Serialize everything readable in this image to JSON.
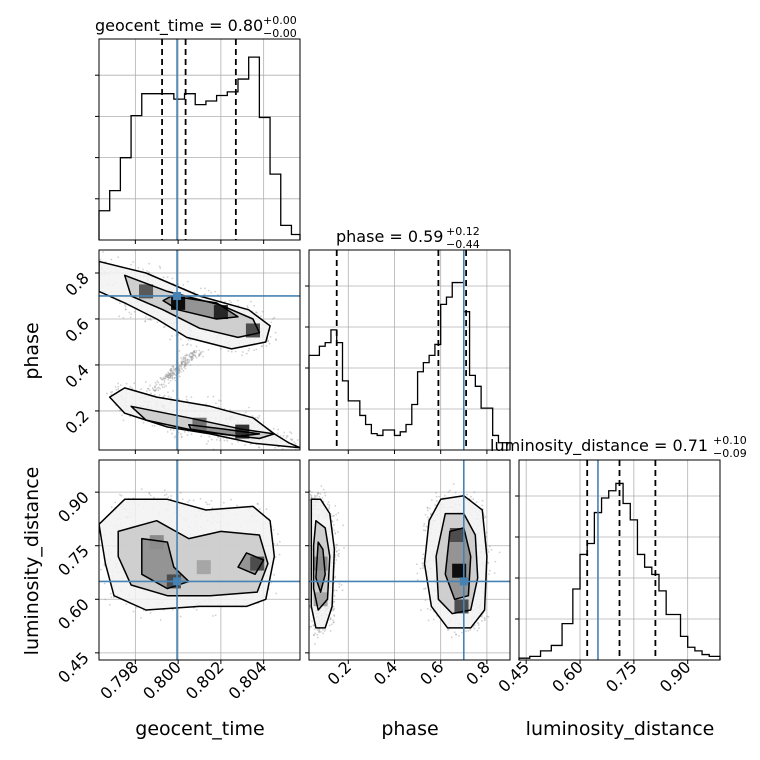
{
  "chart_data": {
    "type": "corner",
    "parameters": [
      "geocent_time",
      "phase",
      "luminosity_distance"
    ],
    "titles": [
      {
        "param": "geocent_time",
        "text": "geocent_time = 0.80",
        "sup": "+0.00",
        "sub": "−0.00"
      },
      {
        "param": "phase",
        "text": "phase = 0.59",
        "sup": "+0.12",
        "sub": "−0.44"
      },
      {
        "param": "luminosity_distance",
        "text": "luminosity_distance = 0.71",
        "sup": "+0.10",
        "sub": "−0.09"
      }
    ],
    "axis_labels": {
      "x": [
        "geocent_time",
        "phase",
        "luminosity_distance"
      ],
      "y": [
        "phase",
        "luminosity_distance"
      ]
    },
    "ranges": {
      "geocent_time": [
        0.7963,
        0.8057
      ],
      "phase": [
        0.03,
        0.9
      ],
      "luminosity_distance": [
        0.43,
        0.99
      ]
    },
    "ticks": {
      "geocent_time": [
        "0.798",
        "0.800",
        "0.802",
        "0.804"
      ],
      "phase_x": [
        "0.2",
        "0.4",
        "0.6",
        "0.8"
      ],
      "phase_y": [
        "0.2",
        "0.4",
        "0.6",
        "0.8"
      ],
      "luminosity_distance": [
        "0.45",
        "0.60",
        "0.75",
        "0.90"
      ]
    },
    "truths": {
      "geocent_time": 0.79995,
      "phase": 0.7,
      "luminosity_distance": 0.65
    },
    "quantiles": {
      "geocent_time": [
        0.79925,
        0.80035,
        0.8027
      ],
      "phase": [
        0.15,
        0.59,
        0.71
      ],
      "luminosity_distance": [
        0.62,
        0.71,
        0.81
      ]
    },
    "histograms": {
      "geocent_time": {
        "edges": [
          0.7963,
          0.7968,
          0.7973,
          0.7978,
          0.7983,
          0.7988,
          0.7993,
          0.7998,
          0.8003,
          0.8008,
          0.8013,
          0.8018,
          0.8023,
          0.8028,
          0.8033,
          0.8038,
          0.8043,
          0.8048,
          0.8053,
          0.8057
        ],
        "values": [
          0.16,
          0.27,
          0.45,
          0.68,
          0.8,
          0.8,
          0.8,
          0.77,
          0.8,
          0.74,
          0.76,
          0.79,
          0.81,
          0.88,
          1.0,
          0.67,
          0.36,
          0.08,
          0.03
        ]
      },
      "phase": {
        "edges": [
          0.03,
          0.075,
          0.1,
          0.125,
          0.15,
          0.175,
          0.2,
          0.225,
          0.25,
          0.275,
          0.3,
          0.325,
          0.35,
          0.4,
          0.425,
          0.45,
          0.475,
          0.5,
          0.525,
          0.55,
          0.575,
          0.6,
          0.625,
          0.65,
          0.675,
          0.7,
          0.725,
          0.75,
          0.775,
          0.8,
          0.825,
          0.85,
          0.9
        ],
        "values": [
          0.52,
          0.57,
          0.59,
          0.66,
          0.59,
          0.38,
          0.27,
          0.27,
          0.19,
          0.14,
          0.09,
          0.08,
          0.11,
          0.08,
          0.1,
          0.14,
          0.25,
          0.43,
          0.48,
          0.52,
          0.58,
          0.8,
          0.84,
          0.92,
          0.92,
          0.76,
          0.41,
          0.35,
          0.23,
          0.23,
          0.08,
          0.04
        ]
      },
      "luminosity_distance": {
        "edges": [
          0.43,
          0.46,
          0.49,
          0.52,
          0.55,
          0.58,
          0.6,
          0.62,
          0.64,
          0.66,
          0.68,
          0.7,
          0.72,
          0.74,
          0.76,
          0.78,
          0.8,
          0.82,
          0.84,
          0.86,
          0.88,
          0.9,
          0.92,
          0.94,
          0.96,
          0.99
        ],
        "values": [
          0.01,
          0.02,
          0.05,
          0.08,
          0.2,
          0.39,
          0.58,
          0.64,
          0.81,
          0.89,
          0.93,
          0.97,
          0.86,
          0.77,
          0.58,
          0.51,
          0.47,
          0.38,
          0.25,
          0.25,
          0.13,
          0.07,
          0.05,
          0.03,
          0.02
        ]
      }
    },
    "contours_2d": {
      "geocent_time_vs_phase": [
        {
          "level": "outer",
          "points": [
            [
              0.7963,
              0.85
            ],
            [
              0.7985,
              0.8
            ],
            [
              0.801,
              0.7
            ],
            [
              0.8033,
              0.64
            ],
            [
              0.8043,
              0.57
            ],
            [
              0.8041,
              0.5
            ],
            [
              0.8025,
              0.47
            ],
            [
              0.8004,
              0.52
            ],
            [
              0.799,
              0.6
            ],
            [
              0.7975,
              0.67
            ],
            [
              0.7963,
              0.72
            ]
          ]
        },
        {
          "level": "outer",
          "points": [
            [
              0.7975,
              0.3
            ],
            [
              0.799,
              0.26
            ],
            [
              0.8015,
              0.22
            ],
            [
              0.8035,
              0.17
            ],
            [
              0.8045,
              0.1
            ],
            [
              0.8052,
              0.06
            ],
            [
              0.8057,
              0.04
            ],
            [
              0.8035,
              0.06
            ],
            [
              0.8015,
              0.1
            ],
            [
              0.7995,
              0.13
            ],
            [
              0.7975,
              0.19
            ],
            [
              0.7968,
              0.26
            ]
          ]
        },
        {
          "level": "middle",
          "points": [
            [
              0.7975,
              0.79
            ],
            [
              0.7995,
              0.72
            ],
            [
              0.802,
              0.66
            ],
            [
              0.8035,
              0.6
            ],
            [
              0.8038,
              0.54
            ],
            [
              0.8028,
              0.52
            ],
            [
              0.801,
              0.56
            ],
            [
              0.7993,
              0.64
            ],
            [
              0.7978,
              0.7
            ]
          ]
        },
        {
          "level": "middle",
          "points": [
            [
              0.7978,
              0.22
            ],
            [
              0.8005,
              0.17
            ],
            [
              0.803,
              0.12
            ],
            [
              0.8045,
              0.1
            ],
            [
              0.8038,
              0.08
            ],
            [
              0.801,
              0.11
            ],
            [
              0.7985,
              0.16
            ]
          ]
        },
        {
          "level": "inner",
          "points": [
            [
              0.7997,
              0.7
            ],
            [
              0.8018,
              0.67
            ],
            [
              0.8028,
              0.61
            ],
            [
              0.8018,
              0.6
            ],
            [
              0.8,
              0.64
            ],
            [
              0.7993,
              0.68
            ]
          ]
        },
        {
          "level": "inner",
          "points": [
            [
              0.8005,
              0.14
            ],
            [
              0.8022,
              0.12
            ],
            [
              0.8038,
              0.1
            ],
            [
              0.8028,
              0.09
            ],
            [
              0.8006,
              0.12
            ]
          ]
        }
      ],
      "geocent_time_vs_luminosity_distance": [
        {
          "level": "outer",
          "points": [
            [
              0.7963,
              0.81
            ],
            [
              0.7975,
              0.88
            ],
            [
              0.7995,
              0.88
            ],
            [
              0.8013,
              0.85
            ],
            [
              0.8035,
              0.86
            ],
            [
              0.8043,
              0.82
            ],
            [
              0.8045,
              0.72
            ],
            [
              0.8041,
              0.6
            ],
            [
              0.8032,
              0.58
            ],
            [
              0.801,
              0.58
            ],
            [
              0.7985,
              0.57
            ],
            [
              0.797,
              0.61
            ],
            [
              0.7966,
              0.7
            ]
          ]
        },
        {
          "level": "middle",
          "points": [
            [
              0.7972,
              0.79
            ],
            [
              0.799,
              0.82
            ],
            [
              0.8005,
              0.77
            ],
            [
              0.802,
              0.79
            ],
            [
              0.8038,
              0.78
            ],
            [
              0.8042,
              0.7
            ],
            [
              0.8037,
              0.62
            ],
            [
              0.8015,
              0.61
            ],
            [
              0.7995,
              0.61
            ],
            [
              0.7978,
              0.64
            ],
            [
              0.7972,
              0.72
            ]
          ]
        },
        {
          "level": "inner",
          "points": [
            [
              0.7983,
              0.77
            ],
            [
              0.7995,
              0.76
            ],
            [
              0.7998,
              0.69
            ],
            [
              0.8005,
              0.65
            ],
            [
              0.7995,
              0.63
            ],
            [
              0.7983,
              0.67
            ]
          ]
        },
        {
          "level": "inner",
          "points": [
            [
              0.8032,
              0.73
            ],
            [
              0.804,
              0.71
            ],
            [
              0.8036,
              0.67
            ],
            [
              0.8028,
              0.69
            ]
          ]
        }
      ],
      "phase_vs_luminosity_distance": [
        {
          "level": "outer",
          "points": [
            [
              0.04,
              0.88
            ],
            [
              0.08,
              0.88
            ],
            [
              0.12,
              0.84
            ],
            [
              0.14,
              0.74
            ],
            [
              0.13,
              0.58
            ],
            [
              0.1,
              0.52
            ],
            [
              0.06,
              0.52
            ],
            [
              0.04,
              0.58
            ]
          ]
        },
        {
          "level": "outer",
          "points": [
            [
              0.6,
              0.88
            ],
            [
              0.7,
              0.89
            ],
            [
              0.78,
              0.85
            ],
            [
              0.8,
              0.72
            ],
            [
              0.79,
              0.57
            ],
            [
              0.73,
              0.52
            ],
            [
              0.63,
              0.52
            ],
            [
              0.56,
              0.58
            ],
            [
              0.53,
              0.7
            ],
            [
              0.55,
              0.82
            ]
          ]
        },
        {
          "level": "middle",
          "points": [
            [
              0.06,
              0.82
            ],
            [
              0.1,
              0.8
            ],
            [
              0.12,
              0.72
            ],
            [
              0.11,
              0.6
            ],
            [
              0.07,
              0.57
            ],
            [
              0.05,
              0.63
            ],
            [
              0.05,
              0.75
            ]
          ]
        },
        {
          "level": "middle",
          "points": [
            [
              0.62,
              0.84
            ],
            [
              0.7,
              0.84
            ],
            [
              0.75,
              0.78
            ],
            [
              0.76,
              0.66
            ],
            [
              0.73,
              0.57
            ],
            [
              0.65,
              0.56
            ],
            [
              0.59,
              0.6
            ],
            [
              0.58,
              0.72
            ]
          ]
        },
        {
          "level": "inner",
          "points": [
            [
              0.07,
              0.76
            ],
            [
              0.09,
              0.74
            ],
            [
              0.1,
              0.67
            ],
            [
              0.08,
              0.62
            ],
            [
              0.06,
              0.66
            ]
          ]
        },
        {
          "level": "inner",
          "points": [
            [
              0.64,
              0.79
            ],
            [
              0.7,
              0.8
            ],
            [
              0.73,
              0.72
            ],
            [
              0.72,
              0.61
            ],
            [
              0.66,
              0.6
            ],
            [
              0.62,
              0.67
            ]
          ]
        }
      ]
    },
    "density_2d": {
      "geocent_time_vs_phase": [
        [
          0.8,
          0.67,
          0.95
        ],
        [
          0.802,
          0.63,
          0.85
        ],
        [
          0.8035,
          0.55,
          0.7
        ],
        [
          0.7985,
          0.72,
          0.65
        ],
        [
          0.803,
          0.11,
          0.8
        ],
        [
          0.801,
          0.14,
          0.55
        ]
      ],
      "geocent_time_vs_luminosity_distance": [
        [
          0.7998,
          0.65,
          0.7
        ],
        [
          0.8037,
          0.7,
          0.7
        ],
        [
          0.799,
          0.76,
          0.45
        ],
        [
          0.8012,
          0.69,
          0.35
        ]
      ],
      "phase_vs_luminosity_distance": [
        [
          0.68,
          0.68,
          0.95
        ],
        [
          0.67,
          0.78,
          0.7
        ],
        [
          0.69,
          0.58,
          0.7
        ],
        [
          0.08,
          0.7,
          0.45
        ],
        [
          0.08,
          0.6,
          0.35
        ]
      ]
    },
    "grid": true
  }
}
